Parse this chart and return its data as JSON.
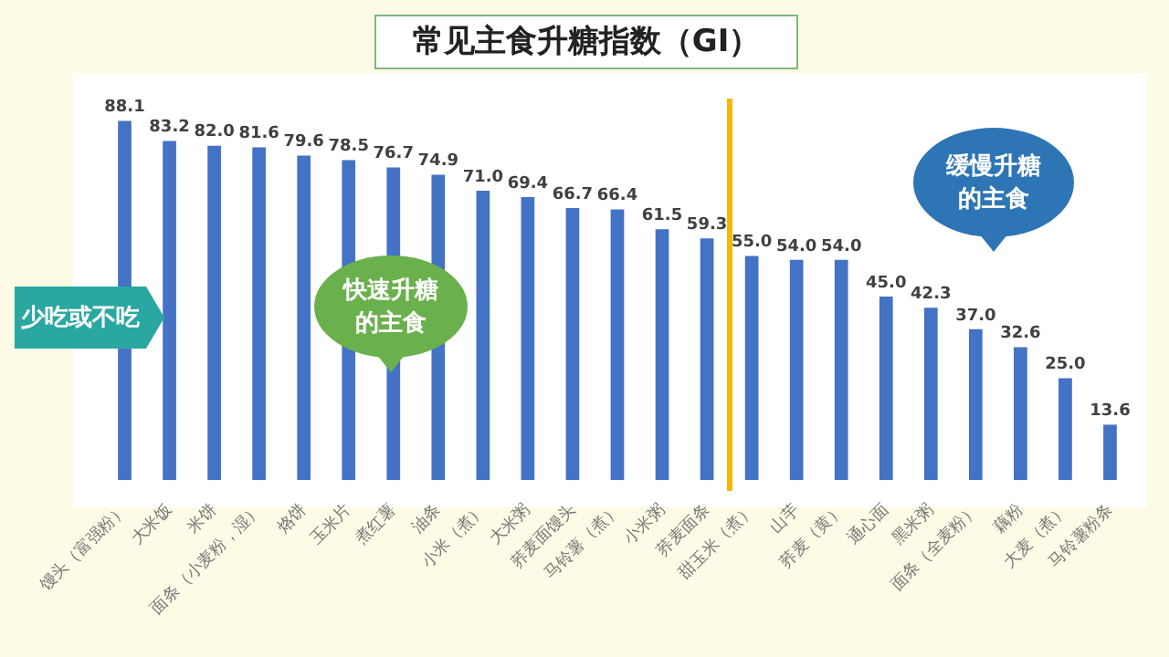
{
  "chart_data": {
    "type": "bar",
    "title": "常见主食升糖指数（GI）",
    "categories": [
      "馒头（富强粉）",
      "大米饭",
      "米饼",
      "面条（小麦粉，湿）",
      "烙饼",
      "玉米片",
      "煮红薯",
      "油条",
      "小米（煮）",
      "大米粥",
      "荞麦面馒头",
      "马铃薯（煮）",
      "小米粥",
      "荞麦面条",
      "甜玉米（煮）",
      "山芋",
      "荞麦（黄）",
      "通心面",
      "黑米粥",
      "面条（全麦粉）",
      "藕粉",
      "大麦（煮）",
      "马铃薯粉条"
    ],
    "values": [
      88.1,
      83.2,
      82.0,
      81.6,
      79.6,
      78.5,
      76.7,
      74.9,
      71.0,
      69.4,
      66.7,
      66.4,
      61.5,
      59.3,
      55.0,
      54.0,
      54.0,
      45.0,
      42.3,
      37.0,
      32.6,
      25.0,
      13.6
    ],
    "value_labels": [
      "88.1",
      "83.2",
      "82.0",
      "81.6",
      "79.6",
      "78.5",
      "76.7",
      "74.9",
      "71.0",
      "69.4",
      "66.7",
      "66.4",
      "61.5",
      "59.3",
      "55.0",
      "54.0",
      "54.0",
      "45.0",
      "42.3",
      "37.0",
      "32.6",
      "25.0",
      "13.6"
    ],
    "color": "#4472c4",
    "tick_labels": "x",
    "annotations": [
      "少吃或不吃",
      "快速升糖的主食",
      "缓慢升糖的主食"
    ]
  }
}
